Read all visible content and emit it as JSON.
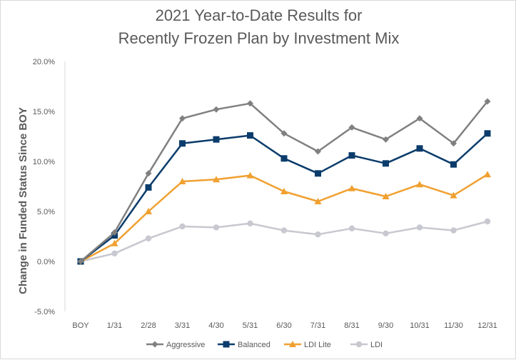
{
  "chart_data": {
    "type": "line",
    "title_line1": "2021 Year-to-Date Results for",
    "title_line2": "Recently Frozen Plan by Investment Mix",
    "xlabel": "",
    "ylabel": "Change in Funded Status Since BOY",
    "categories": [
      "BOY",
      "1/31",
      "2/28",
      "3/31",
      "4/30",
      "5/31",
      "6/30",
      "7/31",
      "8/31",
      "9/30",
      "10/31",
      "11/30",
      "12/31"
    ],
    "ylim": [
      -5.0,
      20.0
    ],
    "yticks": [
      -5.0,
      0.0,
      5.0,
      10.0,
      15.0,
      20.0
    ],
    "ytick_labels": [
      "-5.0%",
      "0.0%",
      "5.0%",
      "10.0%",
      "15.0%",
      "20.0%"
    ],
    "grid": false,
    "legend_position": "bottom",
    "series": [
      {
        "name": "Aggressive",
        "color": "#808080",
        "marker": "diamond",
        "values": [
          0.0,
          2.9,
          8.8,
          14.3,
          15.2,
          15.8,
          12.8,
          11.0,
          13.4,
          12.2,
          14.3,
          11.8,
          16.0
        ]
      },
      {
        "name": "Balanced",
        "color": "#0b3c6b",
        "marker": "square",
        "values": [
          0.0,
          2.6,
          7.4,
          11.8,
          12.2,
          12.6,
          10.3,
          8.8,
          10.6,
          9.8,
          11.3,
          9.7,
          12.8
        ]
      },
      {
        "name": "LDI Lite",
        "color": "#f0a030",
        "marker": "triangle",
        "values": [
          0.0,
          1.8,
          5.0,
          8.0,
          8.2,
          8.6,
          7.0,
          6.0,
          7.3,
          6.5,
          7.7,
          6.6,
          8.7
        ]
      },
      {
        "name": "LDI",
        "color": "#c8c8d0",
        "marker": "circle",
        "values": [
          0.0,
          0.8,
          2.3,
          3.5,
          3.4,
          3.8,
          3.1,
          2.7,
          3.3,
          2.8,
          3.4,
          3.1,
          4.0
        ]
      }
    ]
  }
}
